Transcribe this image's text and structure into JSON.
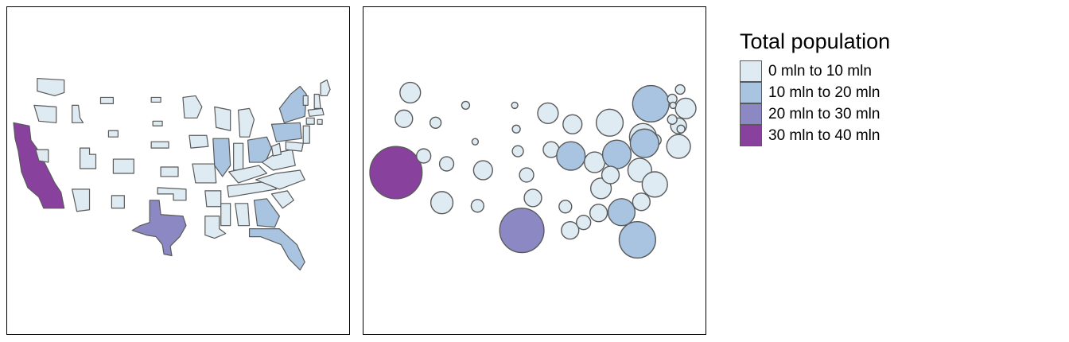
{
  "legend": {
    "title": "Total population",
    "items": [
      {
        "label": "0 mln to 10 mln",
        "color": "#deebf2"
      },
      {
        "label": "10 mln to 20 mln",
        "color": "#a9c4e0"
      },
      {
        "label": "20 mln to 30 mln",
        "color": "#8c88c4"
      },
      {
        "label": "30 mln to 40 mln",
        "color": "#88419d"
      }
    ]
  },
  "maps": [
    {
      "type": "cartogram",
      "geometry": "contiguous US states shrunk by population"
    },
    {
      "type": "dorling",
      "geometry": "contiguous US states as circles sized by population"
    }
  ]
}
